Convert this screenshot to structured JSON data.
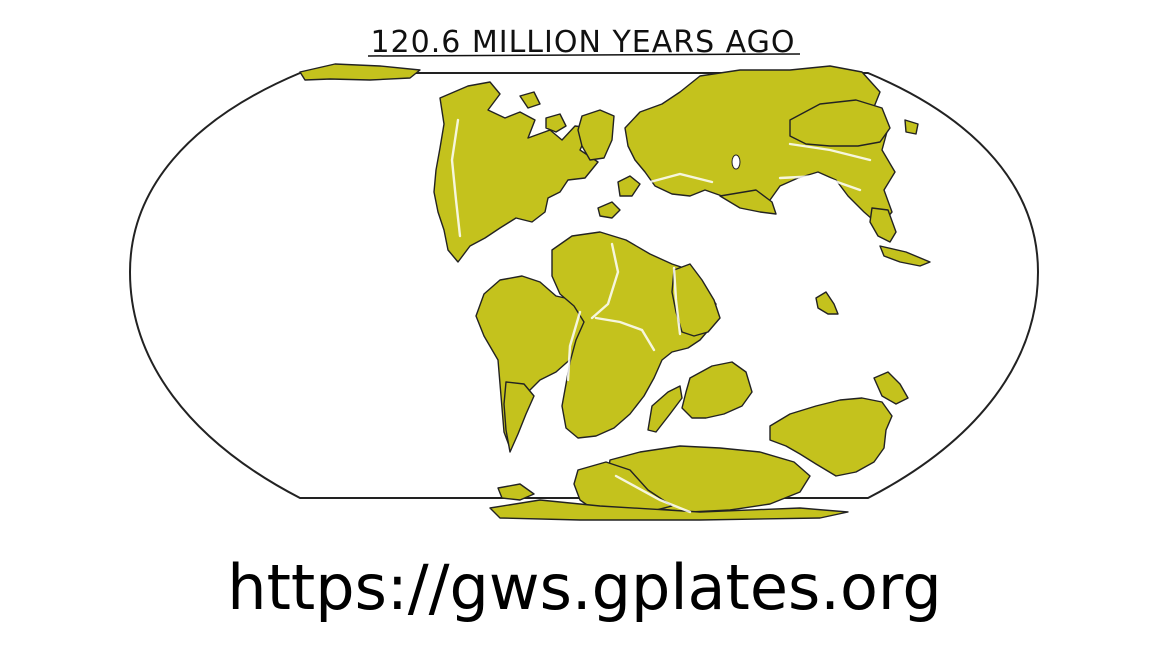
{
  "map": {
    "title": "120.6 MILLION YEARS AGO",
    "projection": "Robinson (global)",
    "land_color": "#c4c21d",
    "ocean_color": "#ffffff",
    "outline_color": "#222222"
  },
  "footer": {
    "url": "https://gws.gplates.org"
  }
}
